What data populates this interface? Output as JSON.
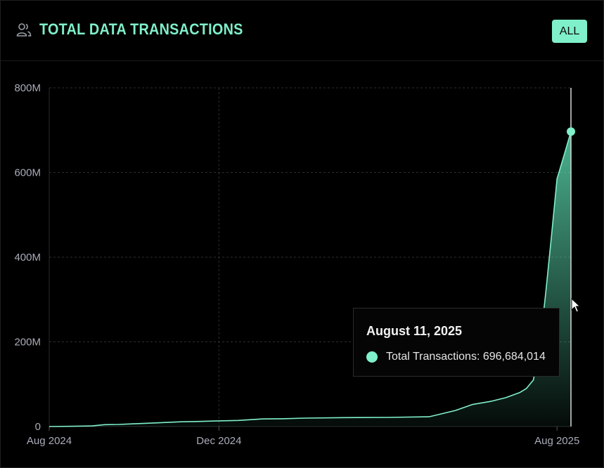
{
  "header": {
    "title": "TOTAL DATA TRANSACTIONS",
    "icon": "users-icon",
    "range_button": "ALL"
  },
  "colors": {
    "accent": "#7ff0c9",
    "background": "#000000",
    "grid": "#2a2a2a",
    "axis_text": "#a9acb9"
  },
  "tooltip": {
    "date": "August 11, 2025",
    "label": "Total Transactions:",
    "value": "696,684,014"
  },
  "chart_data": {
    "type": "area",
    "title": "TOTAL DATA TRANSACTIONS",
    "x_axis": {
      "type": "date",
      "range": [
        "2024-08-01",
        "2025-08-11"
      ],
      "ticks": [
        {
          "date": "2024-08-01",
          "label": "Aug 2024"
        },
        {
          "date": "2024-12-01",
          "label": "Dec 2024"
        },
        {
          "date": "2025-08-01",
          "label": "Aug 2025"
        }
      ]
    },
    "y_axis": {
      "ylim": [
        0,
        800000000
      ],
      "ticks": [
        {
          "value": 0,
          "label": "0"
        },
        {
          "value": 200000000,
          "label": "200M"
        },
        {
          "value": 400000000,
          "label": "400M"
        },
        {
          "value": 600000000,
          "label": "600M"
        },
        {
          "value": 800000000,
          "label": "800M"
        }
      ]
    },
    "grid": true,
    "series": [
      {
        "name": "Total Transactions",
        "points": [
          [
            "2024-08-01",
            0
          ],
          [
            "2024-08-15",
            500000
          ],
          [
            "2024-09-01",
            1500000
          ],
          [
            "2024-09-10",
            4500000
          ],
          [
            "2024-09-20",
            5000000
          ],
          [
            "2024-10-01",
            6500000
          ],
          [
            "2024-10-15",
            8500000
          ],
          [
            "2024-11-01",
            11000000
          ],
          [
            "2024-11-15",
            12000000
          ],
          [
            "2024-12-01",
            13500000
          ],
          [
            "2024-12-15",
            14500000
          ],
          [
            "2025-01-01",
            18000000
          ],
          [
            "2025-01-15",
            18500000
          ],
          [
            "2025-02-01",
            20000000
          ],
          [
            "2025-03-01",
            21000000
          ],
          [
            "2025-04-01",
            21500000
          ],
          [
            "2025-05-01",
            23000000
          ],
          [
            "2025-05-10",
            30000000
          ],
          [
            "2025-05-20",
            38000000
          ],
          [
            "2025-06-01",
            52000000
          ],
          [
            "2025-06-15",
            60000000
          ],
          [
            "2025-06-25",
            68000000
          ],
          [
            "2025-07-05",
            80000000
          ],
          [
            "2025-07-10",
            90000000
          ],
          [
            "2025-07-15",
            110000000
          ],
          [
            "2025-07-20",
            200000000
          ],
          [
            "2025-07-24",
            320000000
          ],
          [
            "2025-07-28",
            450000000
          ],
          [
            "2025-08-01",
            585000000
          ],
          [
            "2025-08-06",
            640000000
          ],
          [
            "2025-08-11",
            696684014
          ]
        ]
      }
    ],
    "highlight": {
      "date": "2025-08-11",
      "value": 696684014
    }
  }
}
